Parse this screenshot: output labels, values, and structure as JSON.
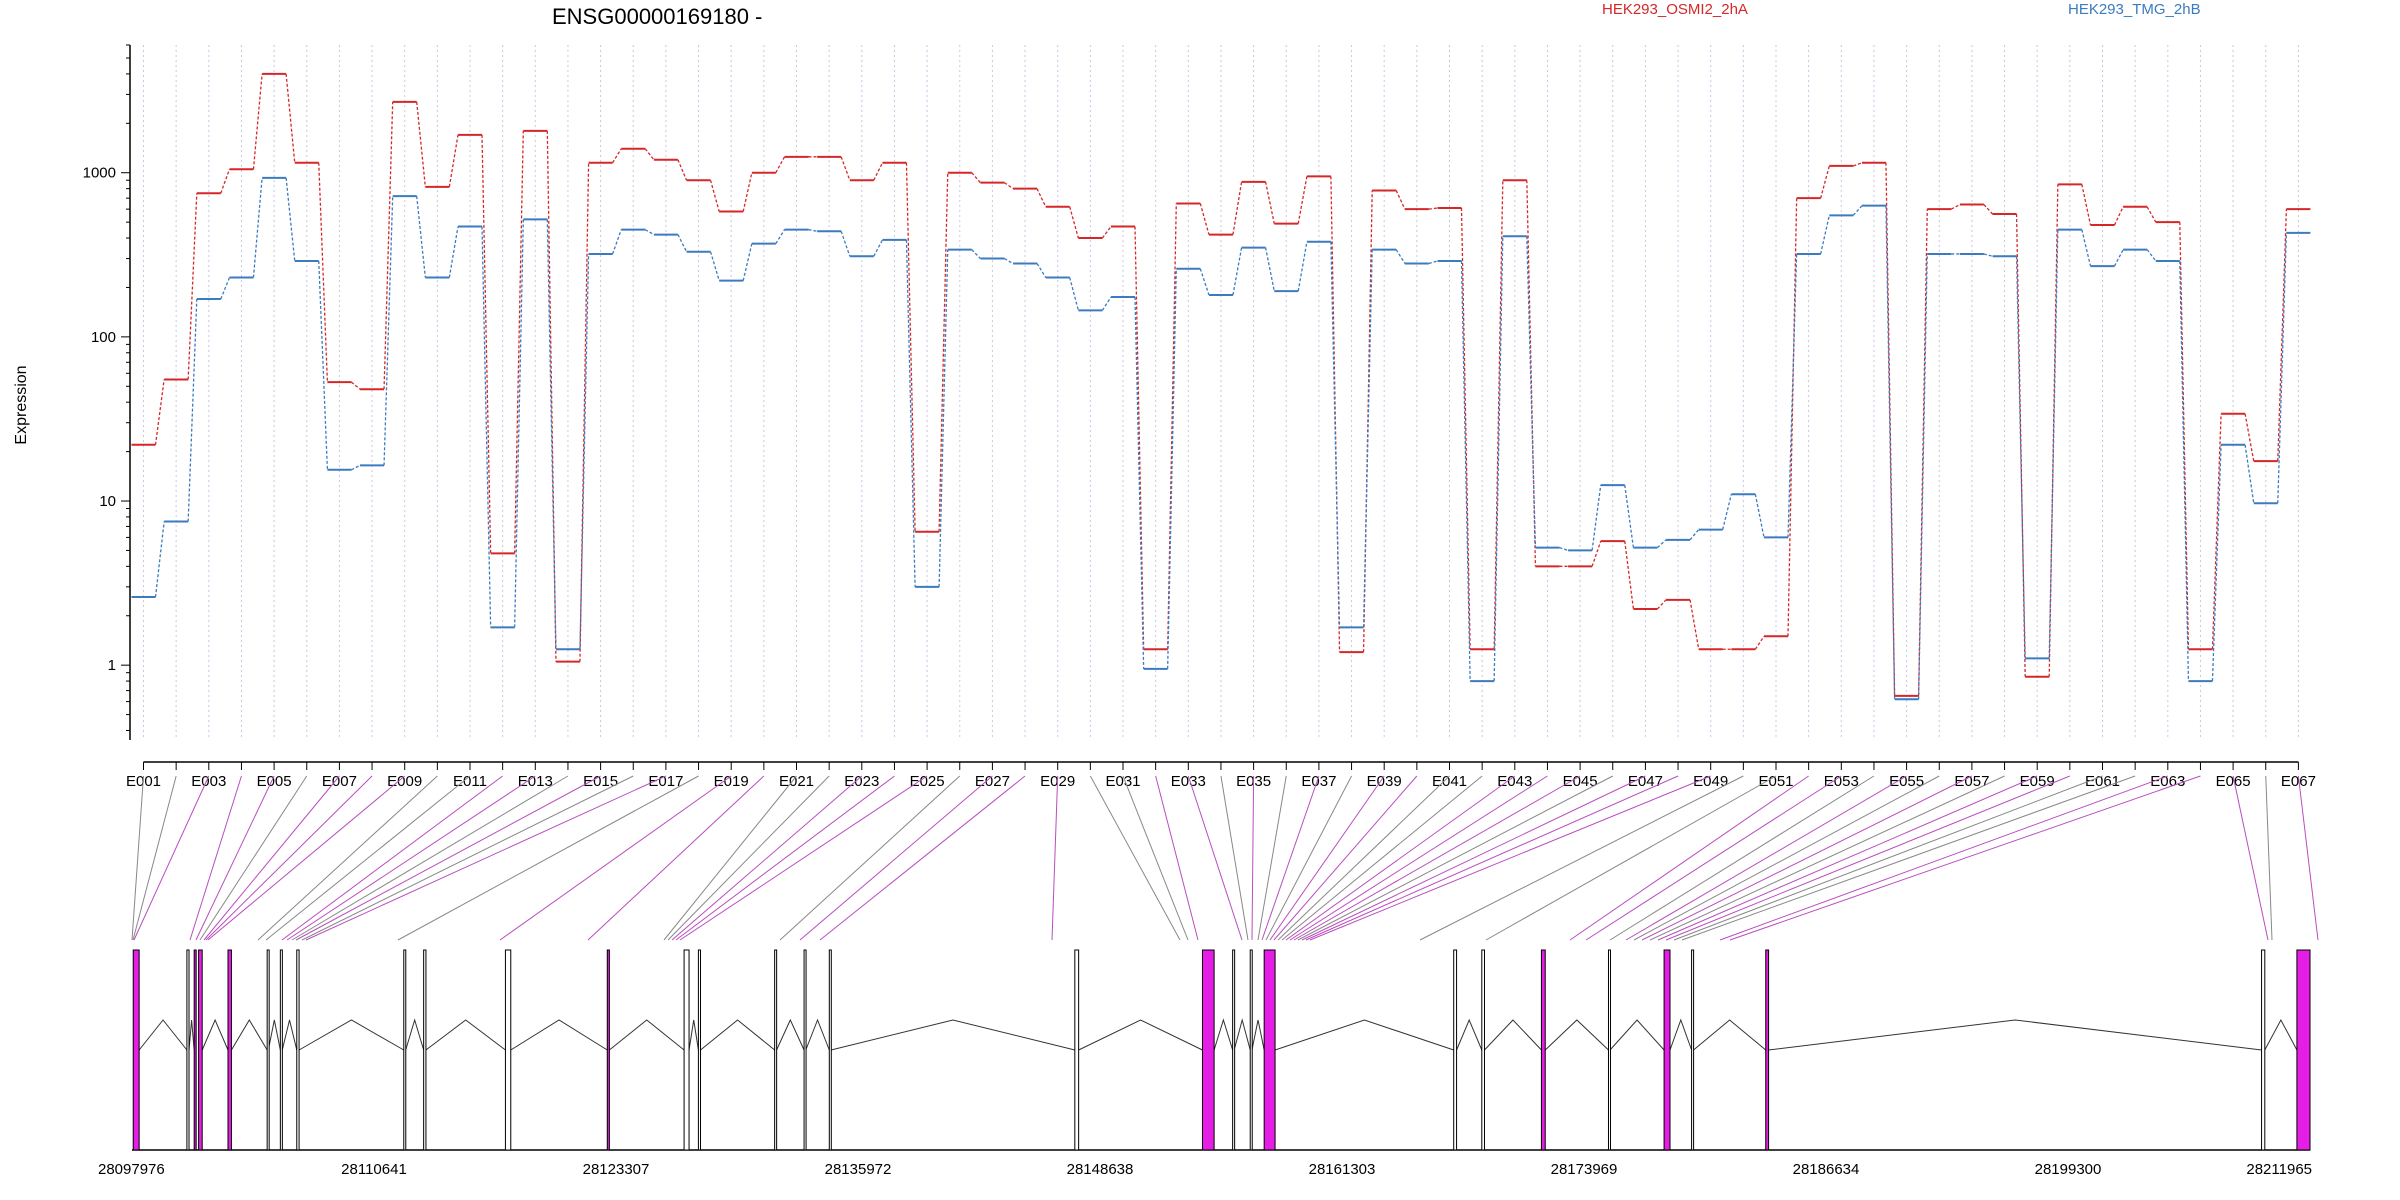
{
  "chart_data": {
    "type": "line",
    "title": "ENSG00000169180 -",
    "ylabel": "Expression",
    "xlabel": "",
    "yscale": "log",
    "ylim": [
      0.35,
      6000
    ],
    "yticks": [
      1,
      10,
      100,
      1000
    ],
    "ytick_labels": [
      "1",
      "10",
      "100",
      "1000"
    ],
    "grid": "vertical dotted lines at exon centers",
    "legend_placement": "top-right",
    "categories": [
      "E001",
      "E002",
      "E003",
      "E004",
      "E005",
      "E006",
      "E007",
      "E008",
      "E009",
      "E010",
      "E011",
      "E012",
      "E013",
      "E014",
      "E015",
      "E016",
      "E017",
      "E018",
      "E019",
      "E020",
      "E021",
      "E022",
      "E023",
      "E024",
      "E025",
      "E026",
      "E027",
      "E028",
      "E029",
      "E030",
      "E031",
      "E032",
      "E033",
      "E034",
      "E035",
      "E036",
      "E037",
      "E038",
      "E039",
      "E040",
      "E041",
      "E042",
      "E043",
      "E044",
      "E045",
      "E046",
      "E047",
      "E048",
      "E049",
      "E050",
      "E051",
      "E052",
      "E053",
      "E054",
      "E055",
      "E056",
      "E057",
      "E058",
      "E059",
      "E060",
      "E061",
      "E062",
      "E063",
      "E064",
      "E065",
      "E066",
      "E067"
    ],
    "shown_category_labels": [
      "E001",
      "E003",
      "E005",
      "E007",
      "E009",
      "E011",
      "E013",
      "E015",
      "E017",
      "E019",
      "E021",
      "E023",
      "E025",
      "E027",
      "E029",
      "E031",
      "E033",
      "E035",
      "E037",
      "E039",
      "E041",
      "E043",
      "E045",
      "E047",
      "E049",
      "E051",
      "E053",
      "E055",
      "E057",
      "E059",
      "E061",
      "E063",
      "E065",
      "E067"
    ],
    "series": [
      {
        "name": "HEK293_OSMI2_2hA",
        "color": "#d62728",
        "values": [
          22,
          55,
          750,
          1050,
          4000,
          1150,
          53,
          48,
          2700,
          820,
          1700,
          4.8,
          1800,
          1.05,
          1150,
          1400,
          1200,
          900,
          580,
          1000,
          1250,
          1250,
          900,
          1150,
          6.5,
          1000,
          870,
          800,
          620,
          400,
          470,
          1.25,
          650,
          420,
          880,
          490,
          950,
          1.2,
          780,
          600,
          610,
          1.25,
          900,
          4.0,
          4.0,
          5.7,
          2.2,
          2.5,
          1.25,
          1.25,
          1.5,
          700,
          1100,
          1150,
          0.65,
          600,
          640,
          560,
          0.85,
          850,
          480,
          620,
          500,
          1.25,
          34,
          17.5,
          600
        ]
      },
      {
        "name": "HEK293_TMG_2hB",
        "color": "#3b7bbf",
        "values": [
          2.6,
          7.5,
          170,
          230,
          930,
          290,
          15.5,
          16.5,
          720,
          230,
          470,
          1.7,
          520,
          1.25,
          320,
          450,
          420,
          330,
          220,
          370,
          450,
          440,
          310,
          390,
          3.0,
          340,
          300,
          280,
          230,
          145,
          175,
          0.95,
          260,
          180,
          350,
          190,
          380,
          1.7,
          340,
          280,
          290,
          0.8,
          410,
          5.2,
          5.0,
          12.5,
          5.2,
          5.8,
          6.7,
          11,
          6.0,
          320,
          550,
          630,
          0.62,
          320,
          320,
          310,
          1.1,
          450,
          270,
          340,
          290,
          0.8,
          22,
          9.7,
          430
        ]
      }
    ],
    "gene_model": {
      "coordinate_labels": [
        "28097976",
        "28110641",
        "28123307",
        "28135972",
        "28148638",
        "28161303",
        "28173969",
        "28186634",
        "28199300",
        "28211965"
      ],
      "range": [
        28097976,
        28211965
      ],
      "exon_color": "#e51ee5",
      "connector_color_significant": "#b94dbf",
      "connector_color_other": "#888888"
    }
  }
}
